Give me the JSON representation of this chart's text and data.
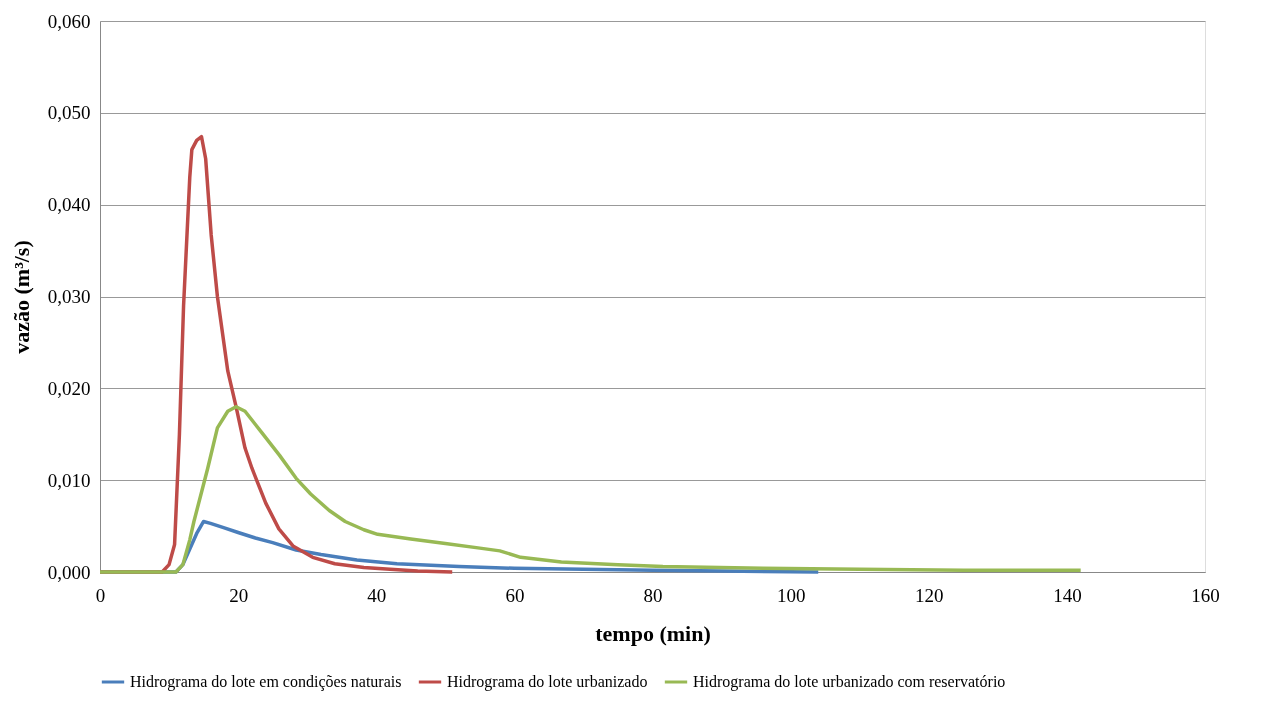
{
  "chart_data": {
    "type": "line",
    "xlabel": "tempo (min)",
    "ylabel": "vazão (m³/s)",
    "xlim": [
      0,
      160
    ],
    "xticks": [
      0,
      20,
      40,
      60,
      80,
      100,
      120,
      140,
      160
    ],
    "ylim": [
      0,
      0.06
    ],
    "yticks": [
      {
        "value": 0,
        "label": "0,000"
      },
      {
        "value": 0.01,
        "label": "0,010"
      },
      {
        "value": 0.02,
        "label": "0,020"
      },
      {
        "value": 0.03,
        "label": "0,030"
      },
      {
        "value": 0.04,
        "label": "0,040"
      },
      {
        "value": 0.05,
        "label": "0,050"
      },
      {
        "value": 0.06,
        "label": "0,060"
      }
    ],
    "grid": "y",
    "legend": "bottom",
    "marker": "none",
    "line_style": "solid",
    "series": [
      {
        "name": "Hidrograma do lote em condições naturais",
        "color": "#4a7ebb",
        "x": [
          0,
          11,
          12,
          13,
          14,
          15,
          16,
          18,
          20,
          22.5,
          25,
          28.4,
          32,
          37.2,
          43,
          52,
          60,
          70,
          80,
          90,
          104
        ],
        "values": [
          0,
          0,
          0.0008,
          0.0025,
          0.0042,
          0.0055,
          0.0053,
          0.0048,
          0.0043,
          0.0037,
          0.0032,
          0.0024,
          0.0019,
          0.0013,
          0.0009,
          0.0006,
          0.0004,
          0.0003,
          0.0002,
          0.0001,
          0
        ]
      },
      {
        "name": "Hidrograma do lote urbanizado",
        "color": "#be4b48",
        "x": [
          0,
          9,
          10,
          10.8,
          11.5,
          12.1,
          13,
          13.3,
          14,
          14.7,
          15.3,
          16.1,
          17,
          18.5,
          19.7,
          21,
          22,
          24,
          25.9,
          28,
          30.8,
          34,
          38.2,
          42,
          46,
          51
        ],
        "values": [
          0,
          0,
          0.0008,
          0.003,
          0.015,
          0.029,
          0.043,
          0.046,
          0.047,
          0.0474,
          0.045,
          0.0367,
          0.03,
          0.0219,
          0.018,
          0.0135,
          0.0113,
          0.0075,
          0.0047,
          0.0028,
          0.0016,
          0.0009,
          0.0005,
          0.0003,
          0.0001,
          0
        ]
      },
      {
        "name": "Hidrograma do lote urbanizado com reservatório",
        "color": "#98b954",
        "x": [
          0,
          11,
          12,
          13,
          13.6,
          15.6,
          17,
          18.5,
          19.7,
          21,
          23.4,
          26,
          28.4,
          30.5,
          33.2,
          35.5,
          38.2,
          40.2,
          45,
          50,
          55,
          57.9,
          60.9,
          66.8,
          75,
          81.5,
          96,
          110,
          125,
          142
        ],
        "values": [
          0,
          0,
          0.0008,
          0.0035,
          0.0055,
          0.0113,
          0.0157,
          0.0175,
          0.018,
          0.0175,
          0.0152,
          0.0127,
          0.0102,
          0.0085,
          0.0067,
          0.0055,
          0.0046,
          0.0041,
          0.0036,
          0.0031,
          0.0026,
          0.0023,
          0.0016,
          0.0011,
          0.0008,
          0.0006,
          0.0004,
          0.0003,
          0.0002,
          0.0002
        ]
      }
    ]
  }
}
